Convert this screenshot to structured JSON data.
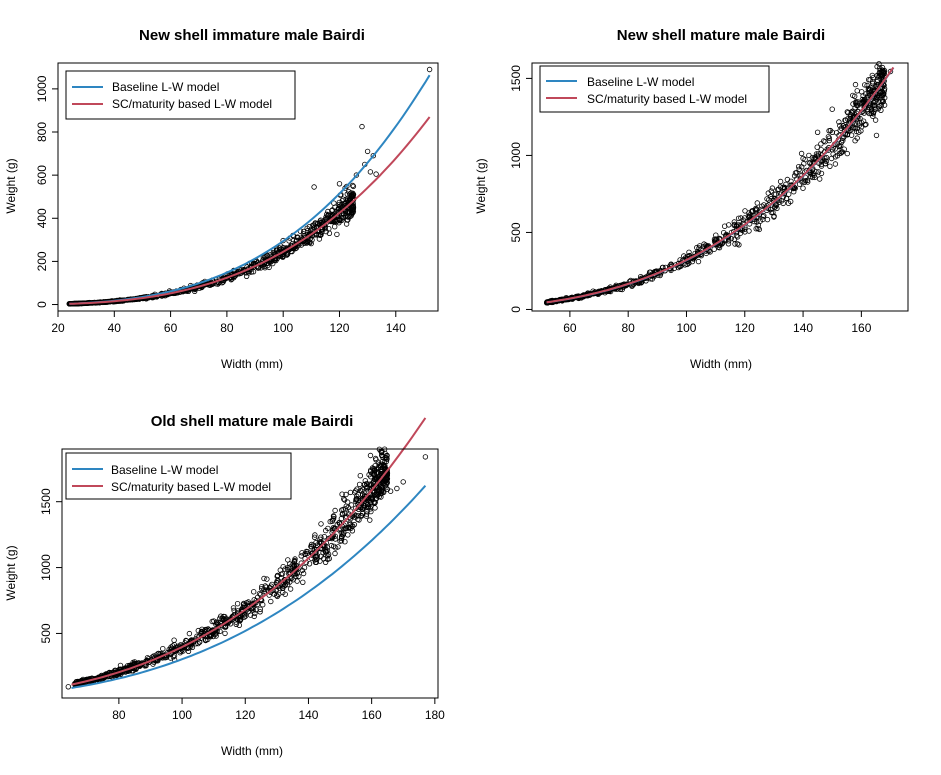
{
  "colors": {
    "baseline": "#2E86C1",
    "sc_maturity": "#C0485A",
    "points": "#000000",
    "background": "#ffffff"
  },
  "chart_data": [
    {
      "type": "scatter",
      "title": "New shell immature male Bairdi",
      "xlabel": "Width (mm)",
      "ylabel": "Weight (g)",
      "xlim": [
        20,
        155
      ],
      "ylim": [
        -30,
        1120
      ],
      "xticks": [
        20,
        40,
        60,
        80,
        100,
        120,
        140
      ],
      "yticks": [
        0,
        200,
        400,
        600,
        800,
        1000
      ],
      "yticks_rotated": true,
      "grid": false,
      "legend_position": "top-left",
      "legend": [
        "Baseline L-W model",
        "SC/maturity based L-W model"
      ],
      "scatter": {
        "x_range": [
          24,
          125
        ],
        "a": 0.000213,
        "b": 3.03,
        "count": 900,
        "noise": 0.07,
        "outliers": [
          [
            152,
            1090
          ],
          [
            128,
            825
          ],
          [
            130,
            710
          ],
          [
            132,
            690
          ],
          [
            129,
            650
          ],
          [
            126,
            600
          ],
          [
            131,
            615
          ],
          [
            133,
            605
          ],
          [
            120,
            560
          ],
          [
            111,
            545
          ],
          [
            122,
            540
          ],
          [
            118,
            470
          ]
        ]
      },
      "series": [
        {
          "name": "Baseline L-W model",
          "type": "line",
          "color_key": "baseline",
          "x_range": [
            24,
            152
          ],
          "a": 0.000213,
          "b": 3.07
        },
        {
          "name": "SC/maturity based L-W model",
          "type": "line",
          "color_key": "sc_maturity",
          "x_range": [
            24,
            152
          ],
          "a": 0.000213,
          "b": 3.03
        }
      ]
    },
    {
      "type": "scatter",
      "title": "New shell mature male Bairdi",
      "xlabel": "Width (mm)",
      "ylabel": "Weight (g)",
      "xlim": [
        47,
        176
      ],
      "ylim": [
        -10,
        1600
      ],
      "xticks": [
        60,
        80,
        100,
        120,
        140,
        160
      ],
      "yticks": [
        0,
        500,
        1000,
        1500
      ],
      "yticks_rotated": true,
      "grid": false,
      "legend_position": "top-left",
      "legend": [
        "Baseline L-W model",
        "SC/maturity based L-W model"
      ],
      "scatter": {
        "x_range": [
          52,
          168
        ],
        "a": 0.00037,
        "b": 2.968,
        "count": 900,
        "noise": 0.06,
        "outliers": [
          [
            170,
            1545
          ],
          [
            158,
            1460
          ],
          [
            163,
            1490
          ],
          [
            150,
            1300
          ],
          [
            145,
            1150
          ],
          [
            140,
            980
          ],
          [
            142,
            1000
          ],
          [
            118,
            420
          ],
          [
            125,
            520
          ],
          [
            130,
            600
          ],
          [
            135,
            690
          ]
        ]
      },
      "series": [
        {
          "name": "Baseline L-W model",
          "type": "line",
          "color_key": "baseline",
          "x_range": [
            52,
            171
          ],
          "a": 0.00037,
          "b": 2.968
        },
        {
          "name": "SC/maturity based L-W model",
          "type": "line",
          "color_key": "sc_maturity",
          "x_range": [
            52,
            171
          ],
          "a": 0.00039,
          "b": 2.958
        }
      ]
    },
    {
      "type": "scatter",
      "title": "Old shell mature male Bairdi",
      "xlabel": "Width (mm)",
      "ylabel": "Weight (g)",
      "xlim": [
        62,
        181
      ],
      "ylim": [
        10,
        1900
      ],
      "xticks": [
        80,
        100,
        120,
        140,
        160,
        180
      ],
      "yticks": [
        500,
        1000,
        1500
      ],
      "yticks_rotated": true,
      "grid": false,
      "legend_position": "top-left",
      "legend": [
        "Baseline L-W model",
        "SC/maturity based L-W model"
      ],
      "scatter": {
        "x_range": [
          66,
          165
        ],
        "a": 0.000512,
        "b": 2.945,
        "count": 1100,
        "noise": 0.06,
        "outliers": [
          [
            177,
            1840
          ],
          [
            170,
            1650
          ],
          [
            168,
            1600
          ],
          [
            166,
            1580
          ],
          [
            160,
            1520
          ],
          [
            155,
            1450
          ],
          [
            64,
            95
          ],
          [
            150,
            1200
          ]
        ]
      },
      "series": [
        {
          "name": "Baseline L-W model",
          "type": "line",
          "color_key": "baseline",
          "x_range": [
            65,
            177
          ],
          "a": 0.00042,
          "b": 2.93
        },
        {
          "name": "SC/maturity based L-W model",
          "type": "line",
          "color_key": "sc_maturity",
          "x_range": [
            65,
            177
          ],
          "a": 0.000512,
          "b": 2.945
        }
      ]
    }
  ]
}
